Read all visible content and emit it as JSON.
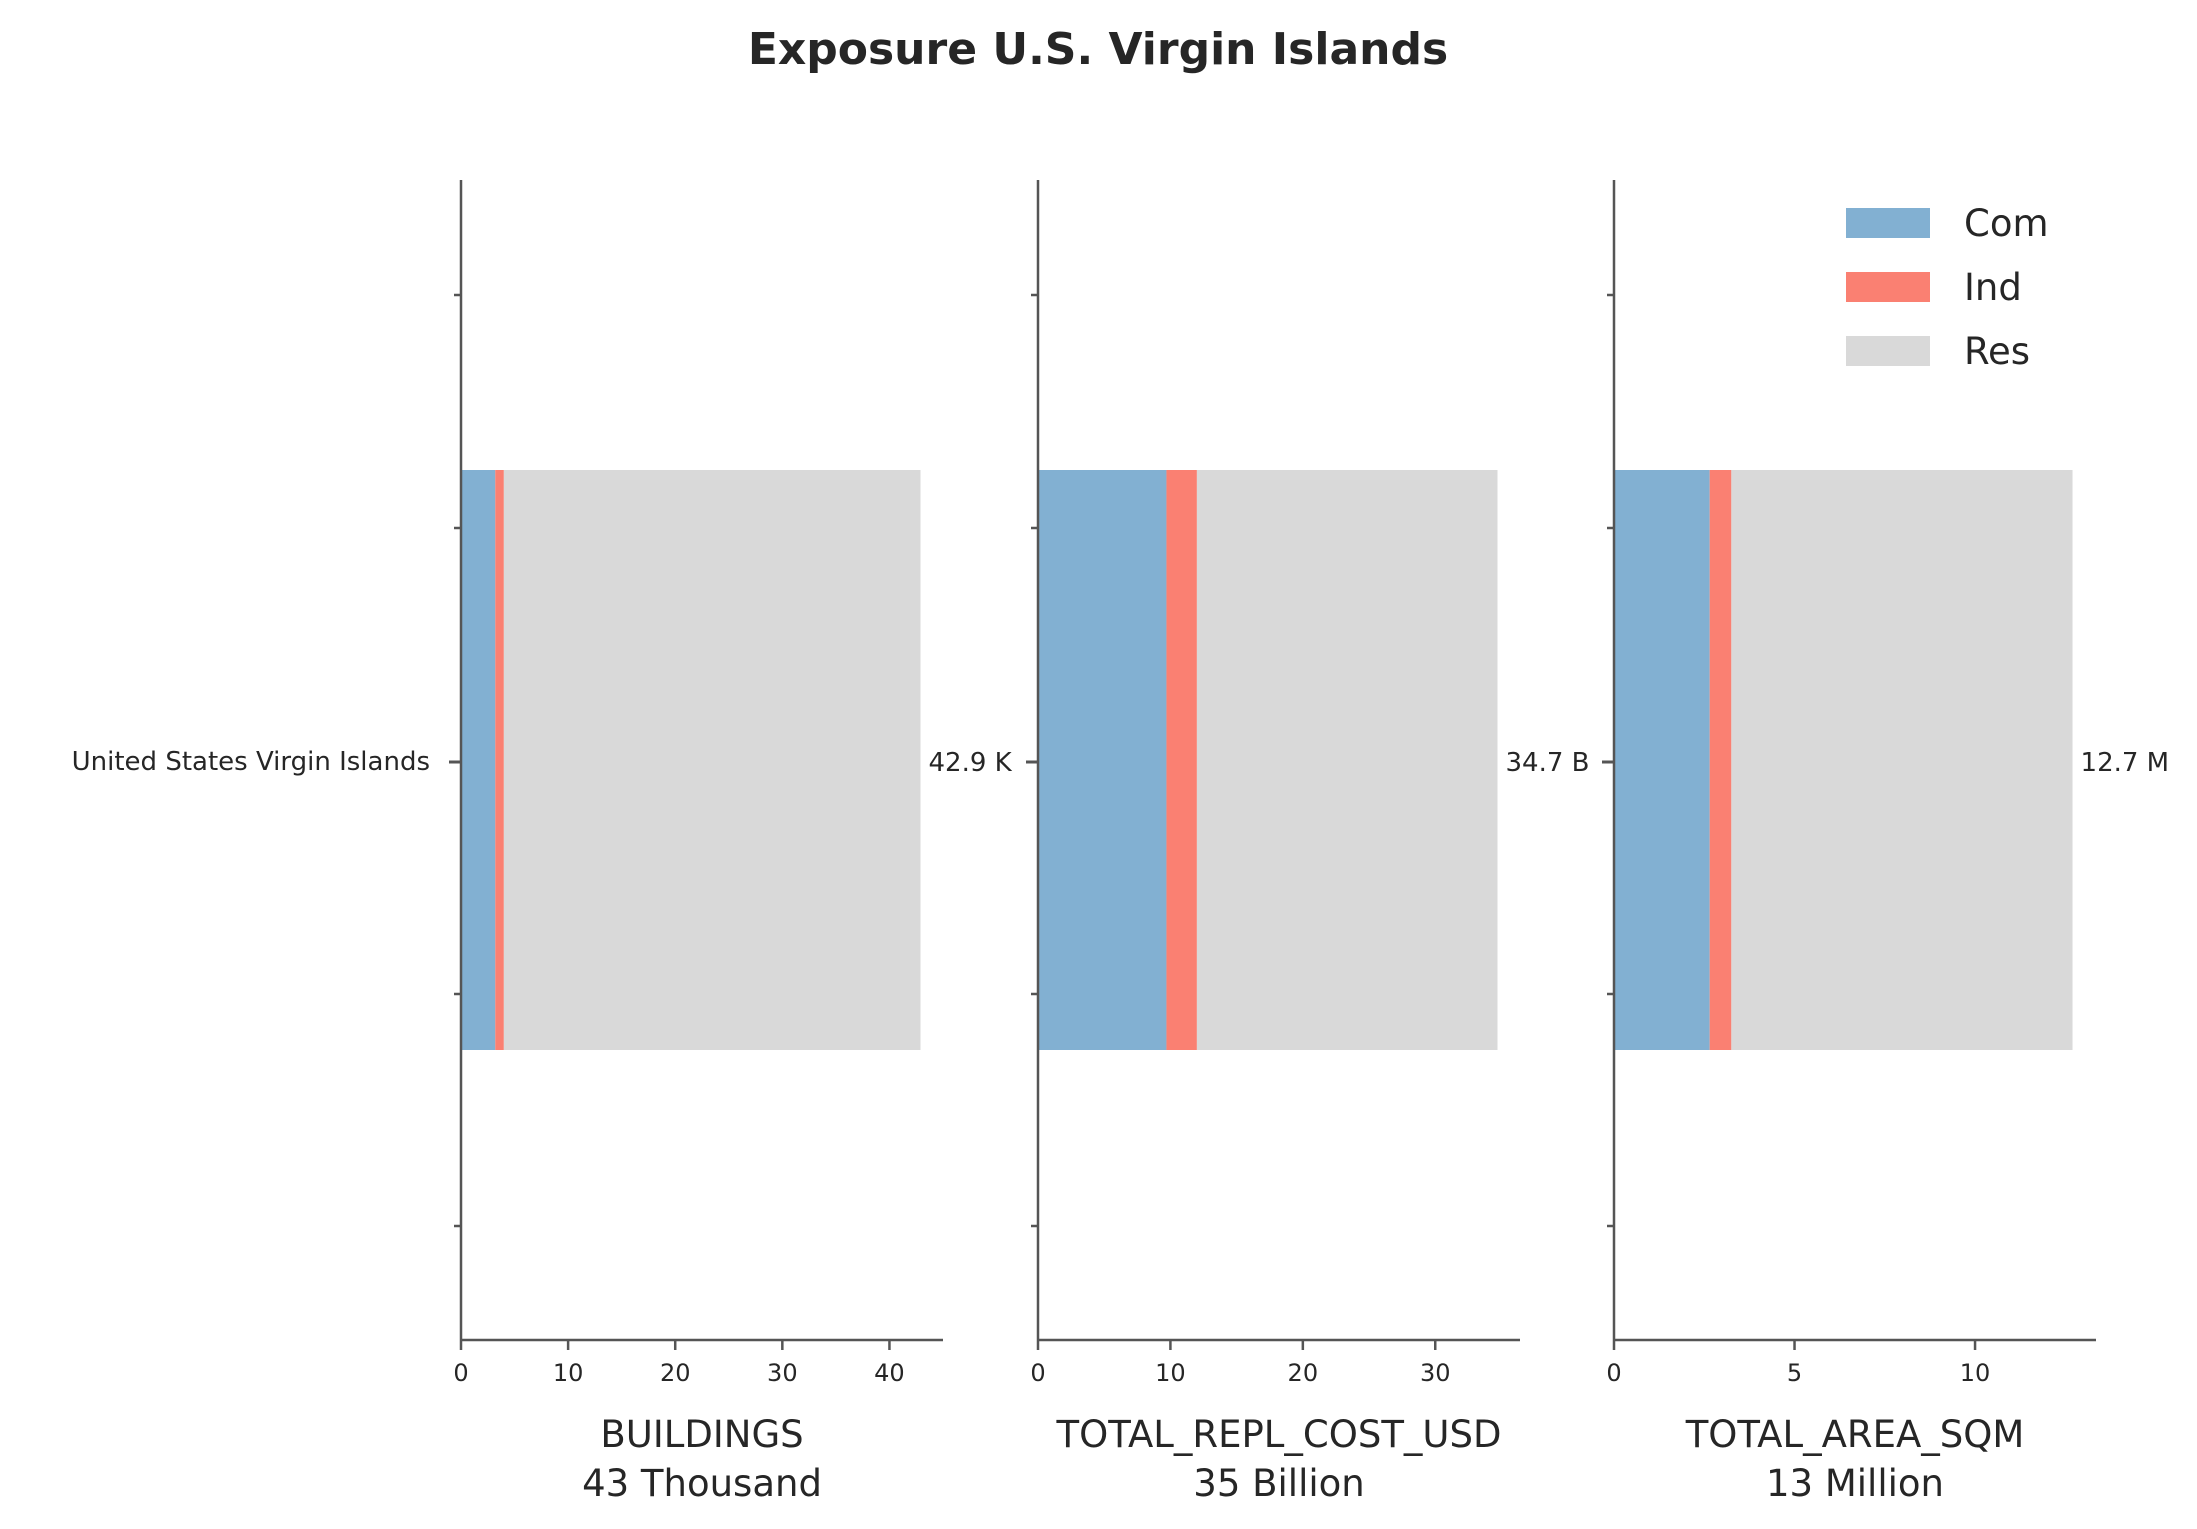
{
  "title": "Exposure U.S. Virgin Islands",
  "category": "United States Virgin Islands",
  "colors": {
    "Com": "#82b0d2",
    "Ind": "#fa8072",
    "Res": "#d9d9d9",
    "axis": "#555555"
  },
  "legend": {
    "placement": "top-right",
    "entries": [
      "Com",
      "Ind",
      "Res"
    ]
  },
  "chart_data": [
    {
      "type": "bar",
      "orientation": "horizontal",
      "stacked": true,
      "categories": [
        "United States Virgin Islands"
      ],
      "series": [
        {
          "name": "Com",
          "values": [
            3.2
          ]
        },
        {
          "name": "Ind",
          "values": [
            0.8
          ]
        },
        {
          "name": "Res",
          "values": [
            38.9
          ]
        }
      ],
      "total_label": "42.9 K",
      "xlabel": "BUILDINGS",
      "xlabel_sub": "43 Thousand",
      "xlim": [
        0,
        45
      ],
      "xticks": [
        0,
        10,
        20,
        30,
        40
      ]
    },
    {
      "type": "bar",
      "orientation": "horizontal",
      "stacked": true,
      "categories": [
        "United States Virgin Islands"
      ],
      "series": [
        {
          "name": "Com",
          "values": [
            9.7
          ]
        },
        {
          "name": "Ind",
          "values": [
            2.3
          ]
        },
        {
          "name": "Res",
          "values": [
            22.7
          ]
        }
      ],
      "total_label": "34.7 B",
      "xlabel": "TOTAL_REPL_COST_USD",
      "xlabel_sub": "35 Billion",
      "xlim": [
        0,
        36.4
      ],
      "xticks": [
        0,
        10,
        20,
        30
      ]
    },
    {
      "type": "bar",
      "orientation": "horizontal",
      "stacked": true,
      "categories": [
        "United States Virgin Islands"
      ],
      "series": [
        {
          "name": "Com",
          "values": [
            2.65
          ]
        },
        {
          "name": "Ind",
          "values": [
            0.6
          ]
        },
        {
          "name": "Res",
          "values": [
            9.45
          ]
        }
      ],
      "total_label": "12.7 M",
      "xlabel": "TOTAL_AREA_SQM",
      "xlabel_sub": "13 Million",
      "xlim": [
        0,
        13.35
      ],
      "xticks": [
        0,
        5,
        10
      ]
    }
  ]
}
